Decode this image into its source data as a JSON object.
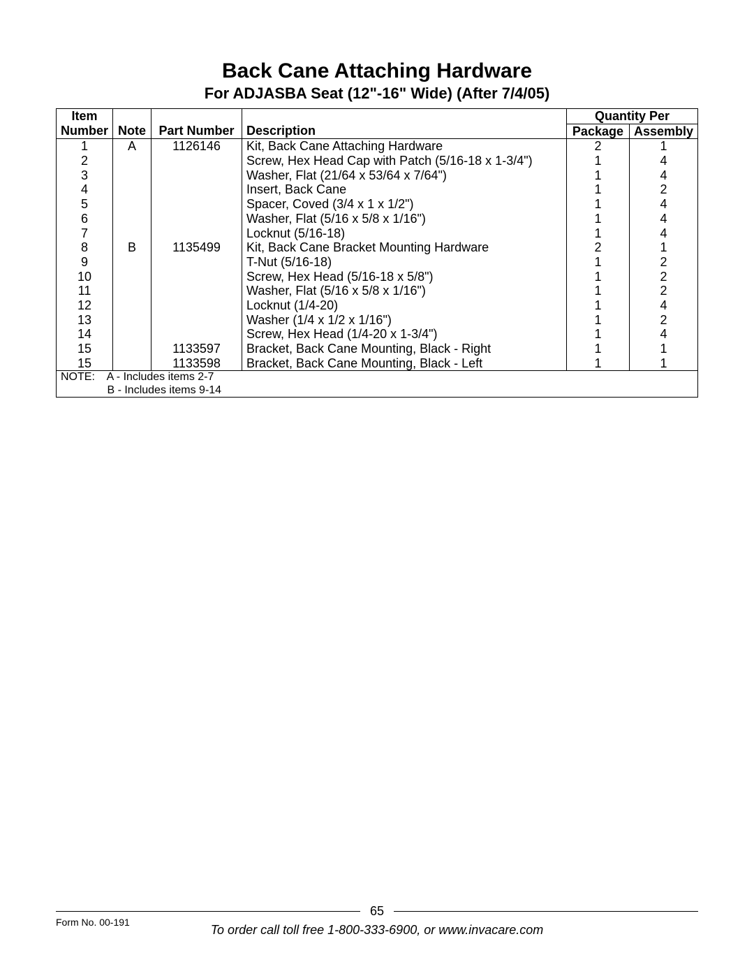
{
  "title": "Back Cane Attaching Hardware",
  "subtitle": "For ADJASBA Seat (12\"-16\" Wide) (After 7/4/05)",
  "headers": {
    "item_top": "Item",
    "item_bot": "Number",
    "note": "Note",
    "part": "Part Number",
    "desc": "Description",
    "qty_span": "Quantity Per",
    "pkg": "Package",
    "asm": "Assembly"
  },
  "rows": [
    {
      "item": "1",
      "note": "A",
      "part": "1126146",
      "desc": "Kit, Back Cane Attaching Hardware",
      "pkg": "2",
      "asm": "1"
    },
    {
      "item": "2",
      "note": "",
      "part": "",
      "desc": "Screw, Hex Head Cap with Patch (5/16-18 x 1-3/4\")",
      "pkg": "1",
      "asm": "4"
    },
    {
      "item": "3",
      "note": "",
      "part": "",
      "desc": "Washer, Flat (21/64 x 53/64 x 7/64\")",
      "pkg": "1",
      "asm": "4"
    },
    {
      "item": "4",
      "note": "",
      "part": "",
      "desc": "Insert, Back Cane",
      "pkg": "1",
      "asm": "2"
    },
    {
      "item": "5",
      "note": "",
      "part": "",
      "desc": "Spacer, Coved (3/4 x 1 x 1/2\")",
      "pkg": "1",
      "asm": "4"
    },
    {
      "item": "6",
      "note": "",
      "part": "",
      "desc": "Washer, Flat (5/16 x 5/8 x 1/16\")",
      "pkg": "1",
      "asm": "4"
    },
    {
      "item": "7",
      "note": "",
      "part": "",
      "desc": "Locknut (5/16-18)",
      "pkg": "1",
      "asm": "4"
    },
    {
      "item": "8",
      "note": "B",
      "part": "1135499",
      "desc": "Kit, Back Cane Bracket Mounting Hardware",
      "pkg": "2",
      "asm": "1"
    },
    {
      "item": "9",
      "note": "",
      "part": "",
      "desc": "T-Nut (5/16-18)",
      "pkg": "1",
      "asm": "2"
    },
    {
      "item": "10",
      "note": "",
      "part": "",
      "desc": "Screw, Hex Head (5/16-18 x 5/8\")",
      "pkg": "1",
      "asm": "2"
    },
    {
      "item": "11",
      "note": "",
      "part": "",
      "desc": "Washer, Flat (5/16 x 5/8 x 1/16\")",
      "pkg": "1",
      "asm": "2"
    },
    {
      "item": "12",
      "note": "",
      "part": "",
      "desc": "Locknut (1/4-20)",
      "pkg": "1",
      "asm": "4"
    },
    {
      "item": "13",
      "note": "",
      "part": "",
      "desc": "Washer (1/4 x 1/2 x 1/16\")",
      "pkg": "1",
      "asm": "2"
    },
    {
      "item": "14",
      "note": "",
      "part": "",
      "desc": "Screw, Hex Head (1/4-20 x 1-3/4\")",
      "pkg": "1",
      "asm": "4"
    },
    {
      "item": "15",
      "note": "",
      "part": "1133597",
      "desc": "Bracket, Back Cane Mounting, Black - Right",
      "pkg": "1",
      "asm": "1"
    },
    {
      "item": "15",
      "note": "",
      "part": "1133598",
      "desc": "Bracket, Back Cane Mounting, Black - Left",
      "pkg": "1",
      "asm": "1"
    }
  ],
  "note_block": {
    "label": "NOTE:",
    "line1": "A - Includes items 2-7",
    "line2": "B - Includes items 9-14"
  },
  "footer": {
    "page_number": "65",
    "form_no": "Form No. 00-191",
    "order_text": "To order call toll free 1-800-333-6900, or www.invacare.com"
  }
}
